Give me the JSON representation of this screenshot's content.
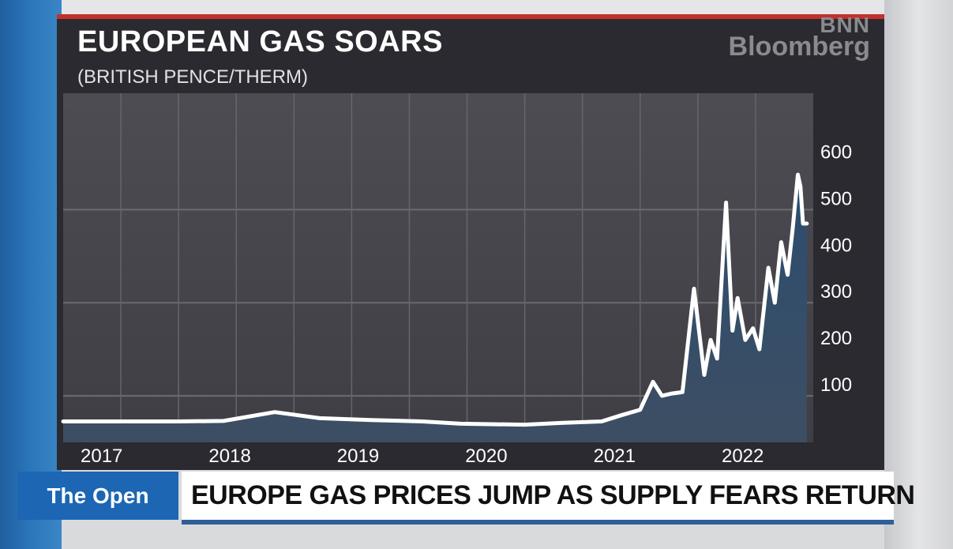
{
  "broadcast": {
    "logo_line1": "BNN",
    "logo_line2": "Bloomberg",
    "show_name": "The Open",
    "headline": "EUROPE GAS PRICES JUMP AS SUPPLY FEARS RETURN"
  },
  "colors": {
    "background": "#2b2a30",
    "plot_bg": "#4a4950",
    "line": "#ffffff",
    "area_top": "#2c4d70",
    "area_bottom": "#3d4e63",
    "accent_red": "#c4302b",
    "strap_blue": "#1c66b3"
  },
  "chart_data": {
    "type": "area",
    "title": "EUROPEAN GAS SOARS",
    "subtitle": "(BRITISH PENCE/THERM)",
    "xlabel": "",
    "ylabel": "",
    "x_tick_labels": [
      "2017",
      "2018",
      "2019",
      "2020",
      "2021",
      "2022"
    ],
    "y_tick_labels": [
      "100",
      "200",
      "300",
      "400",
      "500",
      "600"
    ],
    "y_ticks": [
      100,
      200,
      300,
      400,
      500,
      600
    ],
    "ylim": [
      0,
      750
    ],
    "xlim": [
      2016.7,
      2022.55
    ],
    "grid": true,
    "y_axis_position": "right",
    "series": [
      {
        "x": [
          2016.7,
          2017.0,
          2017.3,
          2017.6,
          2017.95,
          2018.35,
          2018.7,
          2019.1,
          2019.5,
          2019.8,
          2020.3,
          2020.6,
          2020.9,
          2021.05,
          2021.2,
          2021.3,
          2021.37,
          2021.45,
          2021.53,
          2021.62,
          2021.7,
          2021.75,
          2021.8,
          2021.87,
          2021.92,
          2021.96,
          2022.02,
          2022.08,
          2022.13,
          2022.2,
          2022.25,
          2022.3,
          2022.35,
          2022.39,
          2022.43,
          2022.45,
          2022.47,
          2022.5
        ],
        "values": [
          45,
          45,
          45,
          45,
          46,
          65,
          52,
          48,
          45,
          40,
          38,
          42,
          45,
          58,
          70,
          130,
          100,
          105,
          108,
          330,
          145,
          220,
          180,
          515,
          240,
          310,
          220,
          245,
          200,
          375,
          300,
          430,
          360,
          460,
          575,
          550,
          470,
          470
        ]
      }
    ]
  }
}
